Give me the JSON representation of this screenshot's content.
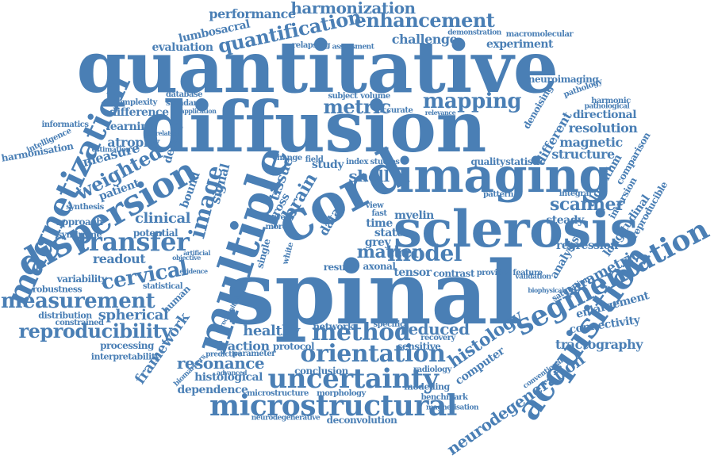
{
  "color": "#4a7fb5",
  "words": [
    "spinal",
    "quantitative",
    "diffusion",
    "cord",
    "sclerosis",
    "imaging",
    "multiple",
    "dispersion",
    "magnetization",
    "acquisition",
    "segmentation",
    "microstructural",
    "uncertainty",
    "orientation",
    "method",
    "transfer",
    "measurement",
    "reproducibility",
    "mapping",
    "enhancement",
    "quantification",
    "harmonization",
    "performance",
    "metric",
    "model",
    "matter",
    "cervical",
    "weighted",
    "shell",
    "image",
    "brain",
    "tissue",
    "scanner",
    "histology",
    "reduced",
    "resonance",
    "fraction",
    "healthy",
    "spherical",
    "readout",
    "clinical",
    "framework",
    "dependence",
    "histological",
    "tractography",
    "connectivity",
    "enlargement",
    "neurodegeneration",
    "parametric",
    "longitudinal",
    "reproducible",
    "resolution",
    "structure",
    "magnetic",
    "directional",
    "different",
    "algorithm",
    "comparison",
    "inversion",
    "regression",
    "analysis",
    "computer",
    "steady",
    "myelin",
    "state",
    "grey",
    "time",
    "cross",
    "data",
    "study",
    "lumbosacral",
    "evaluation",
    "challenge",
    "experiment",
    "neuroimaging",
    "atrophy",
    "density",
    "measure",
    "learning",
    "difference",
    "patient",
    "variability",
    "human",
    "potential",
    "approach",
    "bound",
    "signal",
    "network",
    "harmonisation",
    "processing",
    "interpretability",
    "distribution",
    "robustness",
    "syndrome",
    "synthesis",
    "statistical",
    "constrained",
    "informatics",
    "intelligence",
    "complexity",
    "deconvolution",
    "microstructure",
    "morphology",
    "neurodegenerative",
    "modelling",
    "benchmark",
    "magnetisation",
    "conclusion",
    "radiology",
    "sensitive",
    "protocol",
    "parameter",
    "predictive",
    "biomarkers",
    "axonal",
    "tensor",
    "contrast",
    "provide",
    "feature",
    "result",
    "single",
    "white",
    "quality",
    "statistic",
    "integral",
    "pattern",
    "denoising",
    "saturation",
    "validation",
    "pathology",
    "harmonic",
    "pathological",
    "macromolecular",
    "demonstration",
    "database",
    "standard",
    "subject",
    "volume",
    "relapsing",
    "assessment",
    "recovery",
    "specific",
    "index",
    "studies",
    "fast",
    "view",
    "lower",
    "more",
    "change",
    "field",
    "estimation",
    "correlation",
    "application",
    "advanced",
    "evidence",
    "recognition",
    "artificial",
    "objective",
    "conventional",
    "biophysical",
    "accurate",
    "relevance"
  ]
}
